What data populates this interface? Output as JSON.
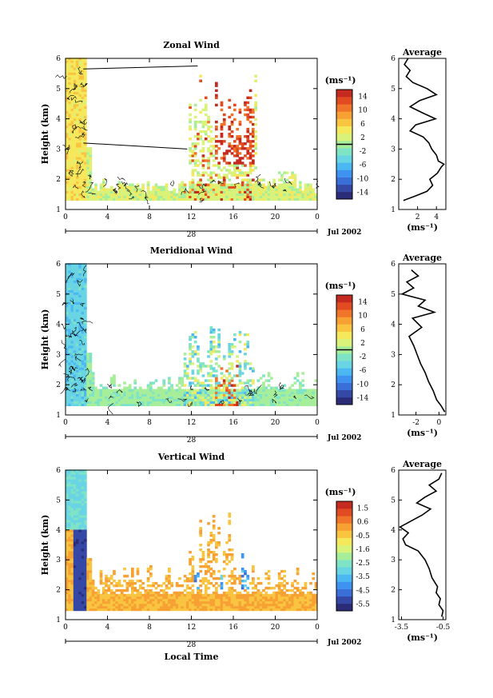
{
  "chart_data": [
    {
      "type": "heatmap",
      "title": "Zonal Wind",
      "ylabel": "Height (km)",
      "xlabel": "",
      "xticks": [
        "0",
        "4",
        "8",
        "12",
        "16",
        "20",
        "0"
      ],
      "xlim": [
        0,
        24
      ],
      "ylim": [
        1,
        6
      ],
      "yticks": [
        "1",
        "2",
        "3",
        "4",
        "5",
        "6"
      ],
      "date_day": "28",
      "date_month": "Jul 2002",
      "colorbar": {
        "unit": "(ms⁻¹)",
        "range": [
          -16,
          16
        ],
        "ticks": [
          "14",
          "10",
          "6",
          "2",
          "-2",
          "-6",
          "-10",
          "-14"
        ],
        "zero_line": true
      },
      "profile": {
        "title": "Average",
        "xticks": [
          "2",
          "4"
        ],
        "xlim": [
          0,
          5
        ],
        "unit": "(ms⁻¹)",
        "heights": [
          1.3,
          1.45,
          1.6,
          1.8,
          2.0,
          2.2,
          2.4,
          2.5,
          2.6,
          2.8,
          3.0,
          3.2,
          3.4,
          3.6,
          3.8,
          4.0,
          4.2,
          4.4,
          4.6,
          4.8,
          5.0,
          5.2,
          5.4,
          5.6,
          5.8,
          6.0
        ],
        "values": [
          0.5,
          1.8,
          3.0,
          3.6,
          3.3,
          4.1,
          4.5,
          4.8,
          4.2,
          4.0,
          3.5,
          3.2,
          2.6,
          1.2,
          1.8,
          3.9,
          2.5,
          1.2,
          2.2,
          4.0,
          3.0,
          1.5,
          0.8,
          1.2,
          0.6,
          1.0
        ]
      }
    },
    {
      "type": "heatmap",
      "title": "Meridional Wind",
      "ylabel": "Height (km)",
      "xlabel": "",
      "xticks": [
        "0",
        "4",
        "8",
        "12",
        "16",
        "20",
        "0"
      ],
      "xlim": [
        0,
        24
      ],
      "ylim": [
        1,
        6
      ],
      "yticks": [
        "1",
        "2",
        "3",
        "4",
        "5",
        "6"
      ],
      "date_day": "28",
      "date_month": "Jul 2002",
      "colorbar": {
        "unit": "(ms⁻¹)",
        "range": [
          -16,
          16
        ],
        "ticks": [
          "14",
          "10",
          "6",
          "2",
          "-2",
          "-6",
          "-10",
          "-14"
        ],
        "zero_line": true
      },
      "profile": {
        "title": "Average",
        "xticks": [
          "-2",
          "0"
        ],
        "xlim": [
          -3.5,
          0.6
        ],
        "unit": "(ms⁻¹)",
        "heights": [
          1.1,
          1.3,
          1.5,
          1.8,
          2.1,
          2.4,
          2.7,
          3.0,
          3.3,
          3.6,
          3.9,
          4.2,
          4.4,
          4.6,
          4.8,
          5.0,
          5.2,
          5.4,
          5.6,
          5.8
        ],
        "values": [
          0.5,
          0.2,
          -0.2,
          -0.5,
          -0.9,
          -1.2,
          -1.6,
          -1.9,
          -2.2,
          -2.6,
          -1.5,
          -2.3,
          -0.4,
          -1.8,
          -1.2,
          -3.2,
          -2.2,
          -2.8,
          -1.8,
          -2.4
        ]
      }
    },
    {
      "type": "heatmap",
      "title": "Vertical Wind",
      "ylabel": "Height (km)",
      "xlabel": "Local Time",
      "xticks": [
        "0",
        "4",
        "8",
        "12",
        "16",
        "20",
        "0"
      ],
      "xlim": [
        0,
        24
      ],
      "ylim": [
        1,
        6
      ],
      "yticks": [
        "1",
        "2",
        "3",
        "4",
        "5",
        "6"
      ],
      "date_day": "28",
      "date_month": "Jul 2002",
      "colorbar": {
        "unit": "(ms⁻¹)",
        "range": [
          -6,
          2
        ],
        "ticks": [
          "1.5",
          "0.6",
          "-0.5",
          "-1.6",
          "-2.5",
          "-3.5",
          "-4.5",
          "-5.5"
        ],
        "zero_line": false
      },
      "profile": {
        "title": "Average",
        "xticks": [
          "-3.5",
          "-0.5"
        ],
        "xlim": [
          -3.7,
          -0.3
        ],
        "unit": "(ms⁻¹)",
        "heights": [
          1.1,
          1.3,
          1.5,
          1.7,
          1.9,
          2.1,
          2.4,
          2.7,
          3.0,
          3.3,
          3.5,
          3.7,
          3.9,
          4.1,
          4.3,
          4.5,
          4.7,
          4.9,
          5.1,
          5.3,
          5.5,
          5.7,
          5.9
        ],
        "values": [
          -0.6,
          -0.5,
          -0.8,
          -0.7,
          -1.0,
          -0.9,
          -1.3,
          -1.5,
          -1.8,
          -2.3,
          -3.2,
          -3.4,
          -3.0,
          -3.6,
          -2.8,
          -2.0,
          -1.4,
          -2.4,
          -1.8,
          -1.0,
          -1.5,
          -0.8,
          -0.6
        ]
      }
    }
  ]
}
